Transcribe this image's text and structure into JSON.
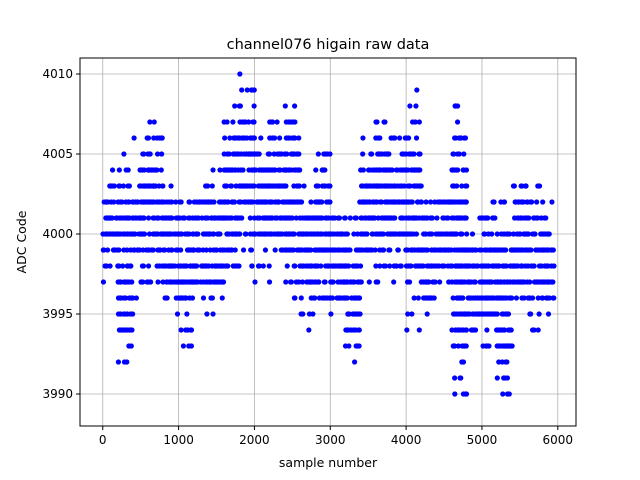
{
  "chart_data": {
    "type": "scatter",
    "title": "channel076 higain raw data",
    "xlabel": "sample number",
    "ylabel": "ADC Code",
    "xlim": [
      -300,
      6240
    ],
    "ylim": [
      3988,
      4011
    ],
    "xticks": [
      0,
      1000,
      2000,
      3000,
      4000,
      5000,
      6000
    ],
    "yticks": [
      3990,
      3995,
      4000,
      4005,
      4010
    ],
    "grid": true,
    "marker_color": "#0000ff",
    "bin_size": 200,
    "bins": [
      {
        "x0": 0,
        "min": 3997,
        "max": 4004
      },
      {
        "x0": 200,
        "min": 3991,
        "max": 4005
      },
      {
        "x0": 400,
        "min": 3996,
        "max": 4006
      },
      {
        "x0": 600,
        "min": 3996,
        "max": 4007
      },
      {
        "x0": 800,
        "min": 3995,
        "max": 4003
      },
      {
        "x0": 1000,
        "min": 3993,
        "max": 4003
      },
      {
        "x0": 1200,
        "min": 3995,
        "max": 4004
      },
      {
        "x0": 1400,
        "min": 3995,
        "max": 4004
      },
      {
        "x0": 1600,
        "min": 3997,
        "max": 4008
      },
      {
        "x0": 1800,
        "min": 3998,
        "max": 4010
      },
      {
        "x0": 2000,
        "min": 3997,
        "max": 4007
      },
      {
        "x0": 2200,
        "min": 3998,
        "max": 4007
      },
      {
        "x0": 2400,
        "min": 3996,
        "max": 4008
      },
      {
        "x0": 2600,
        "min": 3994,
        "max": 4004
      },
      {
        "x0": 2800,
        "min": 3995,
        "max": 4006
      },
      {
        "x0": 3000,
        "min": 3994,
        "max": 4002
      },
      {
        "x0": 3200,
        "min": 3991,
        "max": 4002
      },
      {
        "x0": 3400,
        "min": 3996,
        "max": 4007
      },
      {
        "x0": 3600,
        "min": 3997,
        "max": 4008
      },
      {
        "x0": 3800,
        "min": 3997,
        "max": 4007
      },
      {
        "x0": 4000,
        "min": 3994,
        "max": 4009
      },
      {
        "x0": 4200,
        "min": 3995,
        "max": 4003
      },
      {
        "x0": 4400,
        "min": 3997,
        "max": 4004
      },
      {
        "x0": 4600,
        "min": 3989,
        "max": 4008
      },
      {
        "x0": 4800,
        "min": 3993,
        "max": 4001
      },
      {
        "x0": 5000,
        "min": 3992,
        "max": 4002
      },
      {
        "x0": 5200,
        "min": 3990,
        "max": 4002
      },
      {
        "x0": 5400,
        "min": 3995,
        "max": 4004
      },
      {
        "x0": 5600,
        "min": 3993,
        "max": 4003
      },
      {
        "x0": 5800,
        "min": 3994,
        "max": 4002
      }
    ]
  }
}
